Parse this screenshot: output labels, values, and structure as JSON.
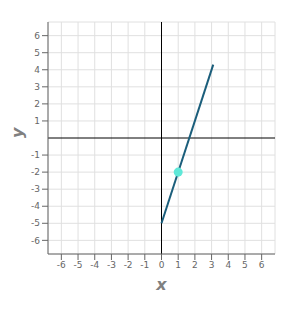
{
  "chart_data": {
    "type": "line",
    "xlabel": "x",
    "ylabel": "y",
    "xlim": [
      -6.8,
      6.8
    ],
    "ylim": [
      -6.8,
      6.8
    ],
    "xticks": [
      -6,
      -5,
      -4,
      -3,
      -2,
      -1,
      0,
      1,
      2,
      3,
      4,
      5,
      6
    ],
    "yticks": [
      -6,
      -5,
      -4,
      -3,
      -2,
      -1,
      1,
      2,
      3,
      4,
      5,
      6
    ],
    "grid": true,
    "series": [
      {
        "type": "line",
        "color": "#1b5e7b",
        "x": [
          0,
          3.1
        ],
        "values": [
          -5,
          4.3
        ]
      },
      {
        "type": "scatter",
        "color": "#5fe8d8",
        "x": [
          1
        ],
        "values": [
          -2
        ]
      }
    ]
  }
}
